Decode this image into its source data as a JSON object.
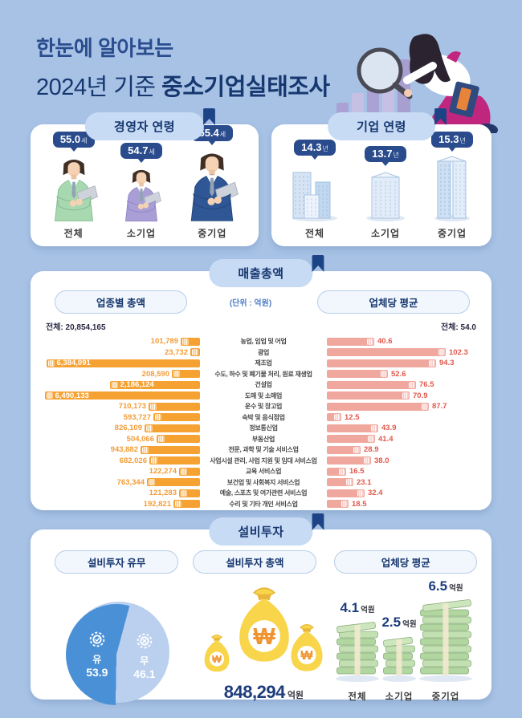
{
  "header": {
    "title_line1": "한눈에 알아보는",
    "title_line2_prefix": "2024년 기준 ",
    "title_line2_bold": "중소기업실태조사"
  },
  "colors": {
    "background": "#a7c2e5",
    "navy": "#16366e",
    "tag_navy": "#2a4c8d",
    "orange_bar": "#f6a233",
    "pink_bar": "#f0a89e",
    "red_value_text": "#e2574b",
    "orange_value_text": "#f29d38",
    "pie_yes": "#4a90d6",
    "pie_no": "#bad0ee"
  },
  "ceo_age": {
    "section_title": "경영자 연령",
    "items": [
      {
        "label": "전체",
        "value": "55.0",
        "unit": "세"
      },
      {
        "label": "소기업",
        "value": "54.7",
        "unit": "세"
      },
      {
        "label": "중기업",
        "value": "55.4",
        "unit": "세"
      }
    ]
  },
  "company_age": {
    "section_title": "기업 연령",
    "items": [
      {
        "label": "전체",
        "value": "14.3",
        "unit": "년"
      },
      {
        "label": "소기업",
        "value": "13.7",
        "unit": "년"
      },
      {
        "label": "중기업",
        "value": "15.3",
        "unit": "년"
      }
    ]
  },
  "sales": {
    "section_title": "매출총액",
    "unit_note": "(단위 : 억원)",
    "left_header": "업종별 총액",
    "right_header": "업체당 평균",
    "left_total": "전체: 20,854,165",
    "right_total": "전체: 54.0"
  },
  "investment": {
    "section_title": "설비투자",
    "pie_header": "설비투자 유무",
    "total_header": "설비투자 총액",
    "avg_header": "업체당 평균",
    "pie": {
      "yes_label": "유",
      "yes_value": "53.9",
      "no_label": "무",
      "no_value": "46.1"
    },
    "total_value": "848,294",
    "total_unit": "억원",
    "averages": [
      {
        "label": "전체",
        "value": "4.1",
        "unit": "억원"
      },
      {
        "label": "소기업",
        "value": "2.5",
        "unit": "억원"
      },
      {
        "label": "중기업",
        "value": "6.5",
        "unit": "억원"
      }
    ]
  },
  "chart_data": [
    {
      "type": "bar",
      "orientation": "horizontal",
      "title": "업종별 총액",
      "unit": "억원",
      "total": 20854165,
      "bar_color": "#f6a233",
      "categories": [
        "농업, 임업 및 어업",
        "광업",
        "제조업",
        "수도, 하수 및 폐기물 처리, 원료 재생업",
        "건설업",
        "도매 및 소매업",
        "운수 및 창고업",
        "숙박 및 음식점업",
        "정보통신업",
        "부동산업",
        "전문, 과학 및 기술 서비스업",
        "사업시설 관리, 사업 지원 및 임대 서비스업",
        "교육 서비스업",
        "보건업 및 사회복지 서비스업",
        "예술, 스포츠 및 여가관련 서비스업",
        "수리 및 기타 개인 서비스업"
      ],
      "values": [
        101789,
        23732,
        6384091,
        208590,
        2186124,
        6490133,
        710173,
        593727,
        826109,
        504066,
        943882,
        682026,
        122274,
        763344,
        121283,
        192821
      ]
    },
    {
      "type": "bar",
      "orientation": "horizontal",
      "title": "업체당 평균",
      "unit": "억원",
      "total": 54.0,
      "bar_color": "#f0a89e",
      "categories": [
        "농업, 임업 및 어업",
        "광업",
        "제조업",
        "수도, 하수 및 폐기물 처리, 원료 재생업",
        "건설업",
        "도매 및 소매업",
        "운수 및 창고업",
        "숙박 및 음식점업",
        "정보통신업",
        "부동산업",
        "전문, 과학 및 기술 서비스업",
        "사업시설 관리, 사업 지원 및 임대 서비스업",
        "교육 서비스업",
        "보건업 및 사회복지 서비스업",
        "예술, 스포츠 및 여가관련 서비스업",
        "수리 및 기타 개인 서비스업"
      ],
      "values": [
        40.6,
        102.3,
        94.3,
        52.6,
        76.5,
        70.9,
        87.7,
        12.5,
        43.9,
        41.4,
        28.9,
        38.0,
        16.5,
        23.1,
        32.4,
        18.5
      ]
    },
    {
      "type": "pie",
      "title": "설비투자 유무",
      "categories": [
        "유",
        "무"
      ],
      "values": [
        53.9,
        46.1
      ],
      "colors": [
        "#4a90d6",
        "#bad0ee"
      ]
    },
    {
      "type": "bar",
      "title": "설비투자 업체당 평균",
      "unit": "억원",
      "categories": [
        "전체",
        "소기업",
        "중기업"
      ],
      "values": [
        4.1,
        2.5,
        6.5
      ]
    },
    {
      "type": "bar",
      "title": "경영자 연령",
      "unit": "세",
      "categories": [
        "전체",
        "소기업",
        "중기업"
      ],
      "values": [
        55.0,
        54.7,
        55.4
      ]
    },
    {
      "type": "bar",
      "title": "기업 연령",
      "unit": "년",
      "categories": [
        "전체",
        "소기업",
        "중기업"
      ],
      "values": [
        14.3,
        13.7,
        15.3
      ]
    }
  ]
}
